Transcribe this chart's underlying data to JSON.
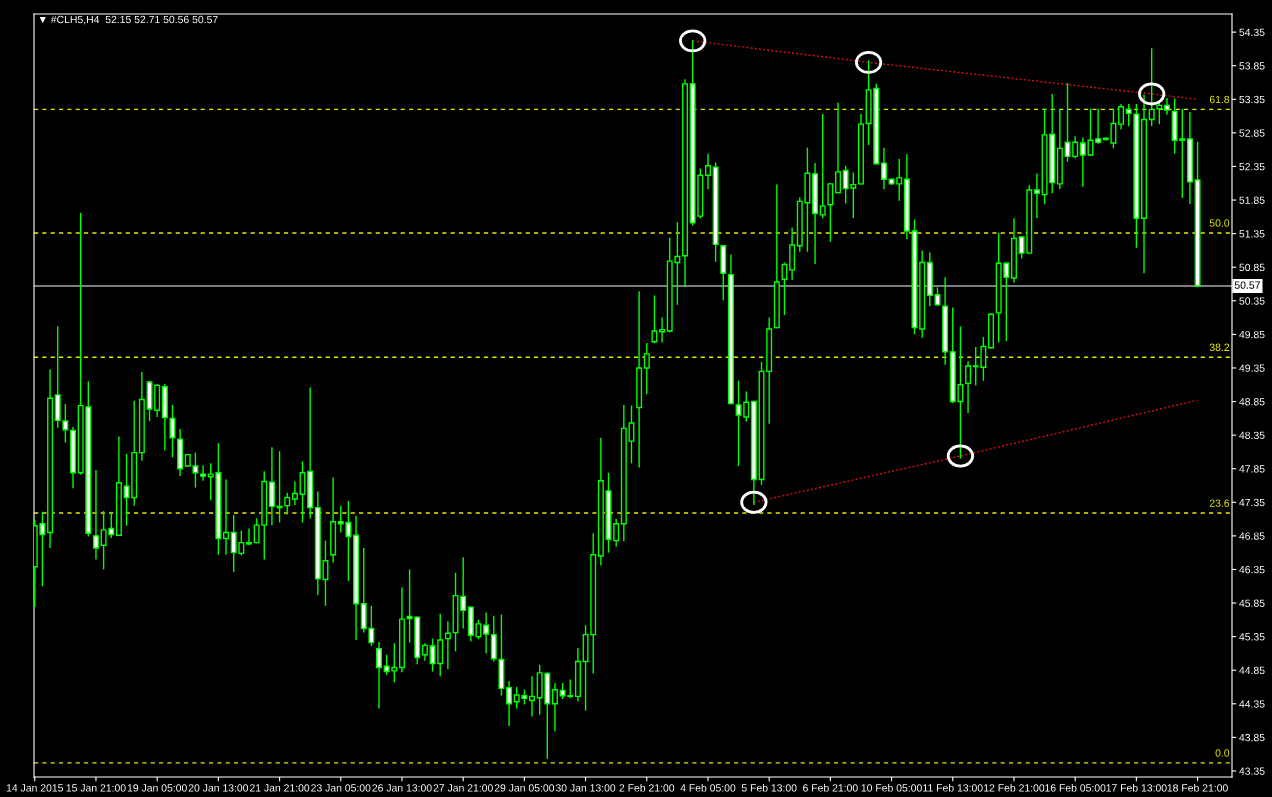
{
  "chart_data": {
    "type": "candlestick",
    "title": "▼ #CLH5,H4  52.15 52.71 50.56 50.57",
    "color": "#00ff00",
    "categories": [
      "14 Jan 2015",
      null,
      null,
      null,
      null,
      null,
      null,
      null,
      "15 Jan 21:00",
      null,
      null,
      null,
      null,
      null,
      null,
      null,
      "19 Jan 05:00",
      null,
      null,
      null,
      null,
      null,
      null,
      null,
      "20 Jan 13:00",
      null,
      null,
      null,
      null,
      null,
      null,
      null,
      "21 Jan 21:00",
      null,
      null,
      null,
      null,
      null,
      null,
      null,
      "23 Jan 05:00",
      null,
      null,
      null,
      null,
      null,
      null,
      null,
      "26 Jan 13:00",
      null,
      null,
      null,
      null,
      null,
      null,
      null,
      "27 Jan 21:00",
      null,
      null,
      null,
      null,
      null,
      null,
      null,
      "29 Jan 05:00",
      null,
      null,
      null,
      null,
      null,
      null,
      null,
      "30 Jan 13:00",
      null,
      null,
      null,
      null,
      null,
      null,
      null,
      "2 Feb 21:00",
      null,
      null,
      null,
      null,
      null,
      null,
      null,
      "4 Feb 05:00",
      null,
      null,
      null,
      null,
      null,
      null,
      null,
      "5 Feb 13:00",
      null,
      null,
      null,
      null,
      null,
      null,
      null,
      "6 Feb 21:00",
      null,
      null,
      null,
      null,
      null,
      null,
      null,
      "10 Feb 05:00",
      null,
      null,
      null,
      null,
      null,
      null,
      null,
      "11 Feb 13:00",
      null,
      null,
      null,
      null,
      null,
      null,
      null,
      "12 Feb 21:00",
      null,
      null,
      null,
      null,
      null,
      null,
      null,
      "16 Feb 05:00",
      null,
      null,
      null,
      null,
      null,
      null,
      null,
      "17 Feb 13:00",
      null,
      null,
      null,
      null,
      null,
      null,
      null,
      "18 Feb 21:00"
    ],
    "ohlc": [
      [
        46.39,
        47.08,
        45.8,
        47.0
      ],
      [
        47.03,
        47.2,
        46.11,
        46.87
      ],
      [
        46.9,
        49.32,
        46.68,
        48.9
      ],
      [
        48.95,
        49.96,
        48.47,
        48.57
      ],
      [
        48.56,
        48.8,
        48.25,
        48.43
      ],
      [
        48.42,
        48.46,
        47.57,
        47.79
      ],
      [
        47.79,
        51.65,
        47.77,
        48.79
      ],
      [
        48.77,
        49.14,
        46.85,
        46.89
      ],
      [
        46.85,
        47.82,
        46.51,
        46.67
      ],
      [
        46.71,
        47.21,
        46.36,
        46.94
      ],
      [
        46.96,
        47.2,
        46.83,
        46.87
      ],
      [
        46.86,
        48.32,
        46.86,
        47.64
      ],
      [
        47.59,
        48.06,
        47.01,
        47.42
      ],
      [
        47.42,
        48.85,
        47.31,
        48.09
      ],
      [
        48.09,
        49.28,
        47.98,
        48.88
      ],
      [
        49.14,
        49.15,
        48.57,
        48.74
      ],
      [
        48.72,
        49.1,
        48.63,
        49.09
      ],
      [
        49.07,
        49.1,
        48.13,
        48.61
      ],
      [
        48.6,
        48.79,
        48.03,
        48.31
      ],
      [
        48.29,
        48.43,
        47.75,
        47.85
      ],
      [
        47.89,
        48.06,
        47.89,
        48.06
      ],
      [
        47.89,
        48.08,
        47.58,
        47.79
      ],
      [
        47.77,
        47.89,
        47.68,
        47.74
      ],
      [
        47.73,
        47.92,
        47.39,
        47.77
      ],
      [
        47.79,
        48.22,
        46.58,
        46.81
      ],
      [
        46.81,
        47.68,
        46.58,
        46.9
      ],
      [
        46.9,
        47.15,
        46.32,
        46.6
      ],
      [
        46.59,
        46.92,
        46.57,
        46.75
      ],
      [
        46.75,
        46.95,
        46.72,
        46.73
      ],
      [
        46.75,
        47.1,
        46.75,
        47.01
      ],
      [
        47.01,
        47.8,
        46.51,
        47.66
      ],
      [
        47.65,
        48.16,
        47.02,
        47.29
      ],
      [
        47.29,
        48.1,
        47.06,
        47.27
      ],
      [
        47.3,
        47.48,
        47.18,
        47.42
      ],
      [
        47.4,
        47.65,
        47.32,
        47.48
      ],
      [
        47.47,
        47.95,
        47.06,
        47.79
      ],
      [
        47.81,
        49.05,
        47.12,
        47.27
      ],
      [
        47.27,
        47.5,
        45.98,
        46.21
      ],
      [
        46.2,
        46.77,
        45.82,
        46.48
      ],
      [
        46.57,
        47.71,
        46.46,
        47.06
      ],
      [
        47.06,
        47.29,
        46.91,
        47.03
      ],
      [
        47.05,
        47.36,
        46.19,
        46.84
      ],
      [
        46.86,
        47.14,
        45.31,
        45.84
      ],
      [
        45.84,
        46.66,
        45.42,
        45.47
      ],
      [
        45.47,
        45.8,
        45.22,
        45.26
      ],
      [
        45.17,
        45.26,
        44.29,
        44.89
      ],
      [
        44.91,
        45.07,
        44.79,
        44.83
      ],
      [
        44.84,
        45.24,
        44.68,
        44.89
      ],
      [
        44.89,
        46.07,
        44.83,
        45.61
      ],
      [
        45.65,
        46.34,
        45.27,
        45.62
      ],
      [
        45.64,
        45.64,
        44.95,
        45.04
      ],
      [
        45.08,
        45.24,
        45.0,
        45.22
      ],
      [
        45.21,
        45.31,
        44.84,
        44.95
      ],
      [
        44.95,
        45.68,
        44.77,
        45.3
      ],
      [
        45.32,
        45.57,
        44.88,
        45.4
      ],
      [
        45.41,
        46.29,
        45.14,
        45.96
      ],
      [
        45.95,
        46.52,
        45.48,
        45.74
      ],
      [
        45.79,
        45.79,
        45.29,
        45.37
      ],
      [
        45.35,
        45.59,
        45.32,
        45.54
      ],
      [
        45.52,
        45.7,
        45.11,
        45.39
      ],
      [
        45.38,
        45.65,
        44.99,
        45.02
      ],
      [
        45.01,
        45.67,
        44.48,
        44.58
      ],
      [
        44.59,
        44.68,
        44.03,
        44.35
      ],
      [
        44.38,
        44.59,
        44.29,
        44.48
      ],
      [
        44.47,
        44.55,
        44.35,
        44.43
      ],
      [
        44.4,
        44.75,
        44.17,
        44.46
      ],
      [
        44.44,
        44.92,
        44.2,
        44.81
      ],
      [
        44.8,
        44.81,
        43.54,
        44.35
      ],
      [
        44.35,
        44.65,
        43.95,
        44.56
      ],
      [
        44.55,
        44.65,
        44.43,
        44.47
      ],
      [
        44.46,
        44.7,
        44.45,
        44.47
      ],
      [
        44.46,
        45.17,
        44.4,
        44.98
      ],
      [
        44.98,
        45.51,
        44.26,
        45.38
      ],
      [
        45.38,
        46.88,
        44.81,
        46.57
      ],
      [
        46.55,
        48.3,
        46.42,
        47.67
      ],
      [
        47.52,
        47.78,
        46.61,
        46.8
      ],
      [
        46.78,
        47.09,
        46.7,
        47.03
      ],
      [
        47.03,
        48.79,
        46.78,
        48.45
      ],
      [
        48.26,
        48.78,
        47.94,
        48.53
      ],
      [
        48.76,
        50.48,
        47.88,
        49.35
      ],
      [
        49.35,
        49.71,
        48.97,
        49.56
      ],
      [
        49.74,
        50.42,
        49.73,
        49.9
      ],
      [
        49.89,
        50.09,
        49.74,
        49.92
      ],
      [
        49.9,
        51.28,
        49.89,
        50.94
      ],
      [
        50.92,
        51.51,
        50.3,
        51.01
      ],
      [
        51.02,
        53.64,
        50.57,
        53.58
      ],
      [
        53.58,
        54.22,
        51.48,
        51.51
      ],
      [
        51.61,
        52.31,
        51.59,
        52.22
      ],
      [
        52.22,
        52.53,
        52.02,
        52.36
      ],
      [
        52.34,
        52.4,
        50.94,
        51.19
      ],
      [
        51.17,
        51.17,
        50.37,
        50.76
      ],
      [
        50.74,
        51.03,
        48.82,
        48.82
      ],
      [
        48.8,
        49.15,
        47.9,
        48.65
      ],
      [
        48.62,
        48.99,
        48.56,
        48.84
      ],
      [
        48.85,
        48.85,
        47.32,
        47.69
      ],
      [
        47.69,
        49.43,
        47.62,
        49.3
      ],
      [
        49.3,
        50.09,
        48.53,
        49.93
      ],
      [
        49.95,
        52.07,
        49.95,
        50.63
      ],
      [
        50.67,
        50.91,
        50.15,
        50.89
      ],
      [
        50.81,
        51.43,
        50.67,
        51.18
      ],
      [
        51.17,
        51.88,
        51.09,
        51.83
      ],
      [
        51.81,
        52.62,
        51.09,
        52.25
      ],
      [
        52.24,
        52.39,
        50.91,
        51.65
      ],
      [
        51.63,
        53.12,
        51.59,
        51.76
      ],
      [
        51.78,
        52.09,
        51.24,
        52.09
      ],
      [
        51.96,
        53.29,
        51.96,
        52.27
      ],
      [
        52.29,
        52.35,
        51.81,
        52.02
      ],
      [
        52.03,
        52.25,
        51.59,
        52.08
      ],
      [
        52.09,
        53.12,
        52.09,
        52.98
      ],
      [
        52.99,
        53.92,
        52.68,
        53.49
      ],
      [
        53.51,
        53.57,
        52.39,
        52.39
      ],
      [
        52.4,
        52.62,
        52.02,
        52.16
      ],
      [
        52.16,
        52.16,
        52.09,
        52.09
      ],
      [
        52.09,
        52.45,
        51.85,
        52.18
      ],
      [
        52.16,
        52.52,
        51.28,
        51.39
      ],
      [
        51.39,
        51.55,
        49.86,
        49.95
      ],
      [
        49.93,
        51.09,
        49.81,
        50.92
      ],
      [
        50.92,
        51.06,
        50.28,
        50.43
      ],
      [
        50.44,
        50.54,
        50.29,
        50.29
      ],
      [
        50.27,
        50.69,
        49.41,
        49.59
      ],
      [
        49.59,
        50.24,
        48.84,
        48.85
      ],
      [
        48.85,
        49.96,
        48.01,
        49.1
      ],
      [
        49.12,
        49.44,
        48.69,
        49.38
      ],
      [
        49.37,
        49.65,
        49.1,
        49.38
      ],
      [
        49.36,
        49.8,
        49.17,
        49.67
      ],
      [
        49.65,
        50.15,
        49.65,
        50.15
      ],
      [
        50.17,
        51.35,
        49.74,
        50.91
      ],
      [
        50.91,
        50.91,
        49.76,
        50.7
      ],
      [
        50.69,
        51.57,
        50.63,
        51.28
      ],
      [
        51.3,
        51.3,
        50.99,
        51.06
      ],
      [
        51.06,
        52.06,
        51.06,
        52.0
      ],
      [
        52.0,
        52.24,
        51.59,
        51.95
      ],
      [
        51.93,
        53.2,
        51.8,
        52.82
      ],
      [
        52.83,
        53.42,
        51.96,
        52.11
      ],
      [
        52.09,
        53.2,
        52.02,
        52.62
      ],
      [
        52.71,
        53.58,
        52.43,
        52.5
      ],
      [
        52.5,
        52.79,
        52.48,
        52.71
      ],
      [
        52.7,
        52.77,
        52.06,
        52.52
      ],
      [
        52.52,
        53.2,
        52.52,
        52.74
      ],
      [
        52.76,
        53.2,
        52.7,
        52.71
      ],
      [
        52.75,
        52.78,
        52.75,
        52.77
      ],
      [
        52.7,
        53.2,
        52.63,
        52.99
      ],
      [
        52.98,
        53.27,
        52.91,
        53.24
      ],
      [
        53.2,
        53.27,
        52.96,
        53.14
      ],
      [
        53.13,
        53.27,
        51.15,
        51.58
      ],
      [
        51.58,
        53.41,
        50.77,
        53.05
      ],
      [
        53.05,
        54.1,
        52.96,
        53.2
      ],
      [
        53.21,
        53.29,
        52.99,
        53.26
      ],
      [
        53.26,
        53.36,
        53.13,
        53.19
      ],
      [
        53.17,
        53.35,
        52.55,
        52.74
      ],
      [
        52.76,
        53.2,
        51.89,
        52.74
      ],
      [
        52.76,
        53.15,
        51.8,
        52.12
      ],
      [
        52.15,
        52.71,
        50.56,
        50.57
      ]
    ],
    "series": [
      {
        "type": "line",
        "color": "#d01010",
        "line_style": "dotted",
        "values": [
          null,
          null,
          null,
          null,
          null,
          null,
          null,
          null,
          null,
          null,
          null,
          null,
          null,
          null,
          null,
          null,
          null,
          null,
          null,
          null,
          null,
          null,
          null,
          null,
          null,
          null,
          null,
          null,
          null,
          null,
          null,
          null,
          null,
          null,
          null,
          null,
          null,
          null,
          null,
          null,
          null,
          null,
          null,
          null,
          null,
          null,
          null,
          null,
          null,
          null,
          null,
          null,
          null,
          null,
          null,
          null,
          null,
          null,
          null,
          null,
          null,
          null,
          null,
          null,
          null,
          null,
          null,
          null,
          null,
          null,
          null,
          null,
          null,
          null,
          null,
          null,
          null,
          null,
          null,
          null,
          null,
          null,
          null,
          null,
          null,
          null,
          54.22,
          null,
          null,
          null,
          null,
          null,
          null,
          null,
          null,
          null,
          null,
          null,
          null,
          null,
          null,
          null,
          null,
          null,
          null,
          null,
          null,
          null,
          null,
          53.9,
          null,
          null,
          null,
          null,
          null,
          null,
          null,
          null,
          null,
          null,
          null,
          null,
          null,
          null,
          null,
          null,
          null,
          null,
          null,
          null,
          null,
          null,
          null,
          null,
          null,
          null,
          null,
          null,
          null,
          null,
          null,
          null,
          null,
          null,
          null,
          null,
          53.43,
          null,
          null,
          null,
          null,
          null,
          53.35
        ]
      },
      {
        "type": "line",
        "color": "#d01010",
        "line_style": "dotted",
        "values": [
          null,
          null,
          null,
          null,
          null,
          null,
          null,
          null,
          null,
          null,
          null,
          null,
          null,
          null,
          null,
          null,
          null,
          null,
          null,
          null,
          null,
          null,
          null,
          null,
          null,
          null,
          null,
          null,
          null,
          null,
          null,
          null,
          null,
          null,
          null,
          null,
          null,
          null,
          null,
          null,
          null,
          null,
          null,
          null,
          null,
          null,
          null,
          null,
          null,
          null,
          null,
          null,
          null,
          null,
          null,
          null,
          null,
          null,
          null,
          null,
          null,
          null,
          null,
          null,
          null,
          null,
          null,
          null,
          null,
          null,
          null,
          null,
          null,
          null,
          null,
          null,
          null,
          null,
          null,
          null,
          null,
          null,
          null,
          null,
          null,
          null,
          null,
          null,
          null,
          null,
          null,
          null,
          null,
          null,
          47.35,
          null,
          null,
          null,
          null,
          null,
          null,
          null,
          null,
          null,
          null,
          null,
          null,
          null,
          null,
          null,
          null,
          null,
          null,
          null,
          null,
          null,
          null,
          null,
          null,
          null,
          null,
          48.04,
          null,
          null,
          null,
          null,
          null,
          null,
          null,
          null,
          null,
          null,
          null,
          null,
          null,
          null,
          null,
          null,
          null,
          null,
          null,
          null,
          null,
          null,
          null,
          null,
          null,
          null,
          null,
          null,
          null,
          null,
          48.87
        ]
      }
    ],
    "ref_lines": [
      {
        "axis": "y",
        "value": 53.2,
        "color": "#e8e800",
        "line_style": "dashed"
      },
      {
        "axis": "y",
        "value": 51.36,
        "color": "#e8e800",
        "line_style": "dashed"
      },
      {
        "axis": "y",
        "value": 49.51,
        "color": "#e8e800",
        "line_style": "dashed"
      },
      {
        "axis": "y",
        "value": 47.19,
        "color": "#e8e800",
        "line_style": "dashed"
      },
      {
        "axis": "y",
        "value": 43.47,
        "color": "#e8e800",
        "line_style": "dashed"
      },
      {
        "axis": "y",
        "value": 50.57,
        "label": "50.57",
        "color": "#a0a8b0",
        "line_style": "solid"
      }
    ],
    "annotations": [
      {
        "text": "61.8",
        "y": 53.2
      },
      {
        "text": "50.0",
        "y": 51.36
      },
      {
        "text": "38.2",
        "y": 49.51
      },
      {
        "text": "23.6",
        "y": 47.19
      },
      {
        "text": "0.0",
        "y": 43.47
      }
    ],
    "ylim": [
      43.26,
      54.62
    ],
    "yticks": [
      54.35,
      53.85,
      53.35,
      52.85,
      52.35,
      51.85,
      51.35,
      50.85,
      50.35,
      49.85,
      49.35,
      48.85,
      48.35,
      47.85,
      47.35,
      46.85,
      46.35,
      45.85,
      45.35,
      44.85,
      44.35,
      43.85,
      43.35
    ],
    "grid": false,
    "legend": false
  }
}
